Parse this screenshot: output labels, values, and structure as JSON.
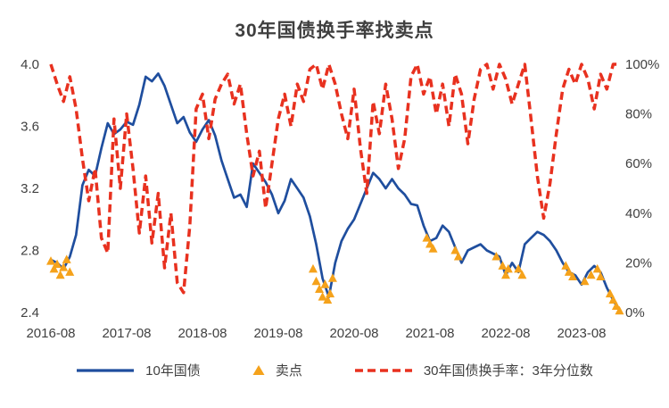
{
  "chart_data": {
    "type": "line",
    "title": "30年国债换手率找卖点",
    "grid": false,
    "legend_position": "bottom",
    "background": "#FFFFFF",
    "x_axis": {
      "unit": "months since 2016-08",
      "range": [
        0,
        90
      ],
      "tick_months": [
        0,
        12,
        24,
        36,
        48,
        60,
        72,
        84
      ],
      "tick_labels": [
        "2016-08",
        "2017-08",
        "2018-08",
        "2019-08",
        "2020-08",
        "2021-08",
        "2022-08",
        "2023-08"
      ]
    },
    "y_axis_left": {
      "range": [
        2.4,
        4.0
      ],
      "ticks": [
        2.4,
        2.8,
        3.2,
        3.6,
        4.0
      ],
      "tick_labels": [
        "2.4",
        "2.8",
        "3.2",
        "3.6",
        "4.0"
      ]
    },
    "y_axis_right": {
      "range": [
        0,
        100
      ],
      "ticks": [
        0,
        20,
        40,
        60,
        80,
        100
      ],
      "tick_labels": [
        "0%",
        "20%",
        "40%",
        "60%",
        "80%",
        "100%"
      ]
    },
    "series": [
      {
        "name": "10年国债",
        "type": "line",
        "axis": "left",
        "color": "#1F4E9E",
        "x_step": "monthly from month 0",
        "values": [
          2.74,
          2.72,
          2.68,
          2.76,
          2.9,
          3.22,
          3.32,
          3.28,
          3.46,
          3.62,
          3.55,
          3.58,
          3.63,
          3.61,
          3.74,
          3.92,
          3.89,
          3.94,
          3.86,
          3.74,
          3.62,
          3.66,
          3.56,
          3.5,
          3.58,
          3.64,
          3.54,
          3.38,
          3.26,
          3.14,
          3.16,
          3.08,
          3.36,
          3.3,
          3.24,
          3.16,
          3.04,
          3.12,
          3.26,
          3.2,
          3.14,
          3.02,
          2.84,
          2.62,
          2.5,
          2.72,
          2.86,
          2.94,
          3.0,
          3.1,
          3.2,
          3.3,
          3.26,
          3.2,
          3.26,
          3.2,
          3.16,
          3.1,
          3.09,
          2.96,
          2.86,
          2.88,
          2.96,
          2.92,
          2.82,
          2.72,
          2.8,
          2.82,
          2.84,
          2.8,
          2.78,
          2.76,
          2.64,
          2.72,
          2.66,
          2.84,
          2.88,
          2.92,
          2.9,
          2.86,
          2.8,
          2.72,
          2.66,
          2.64,
          2.58,
          2.66,
          2.7,
          2.66,
          2.56,
          2.48,
          2.41
        ]
      },
      {
        "name": "卖点",
        "type": "scatter-triangle",
        "axis": "left",
        "color": "#F5A21B",
        "points": [
          [
            0,
            2.73
          ],
          [
            0.5,
            2.68
          ],
          [
            1,
            2.71
          ],
          [
            1.5,
            2.64
          ],
          [
            2,
            2.69
          ],
          [
            2.5,
            2.74
          ],
          [
            3,
            2.66
          ],
          [
            41.5,
            2.68
          ],
          [
            42,
            2.6
          ],
          [
            42.5,
            2.55
          ],
          [
            43,
            2.5
          ],
          [
            43.4,
            2.58
          ],
          [
            43.8,
            2.48
          ],
          [
            44.2,
            2.52
          ],
          [
            44.6,
            2.62
          ],
          [
            59.5,
            2.88
          ],
          [
            60,
            2.84
          ],
          [
            60.5,
            2.81
          ],
          [
            64,
            2.8
          ],
          [
            64.5,
            2.76
          ],
          [
            70.5,
            2.76
          ],
          [
            71.5,
            2.7
          ],
          [
            72,
            2.64
          ],
          [
            72.4,
            2.68
          ],
          [
            74,
            2.68
          ],
          [
            74.6,
            2.64
          ],
          [
            81.5,
            2.7
          ],
          [
            82,
            2.66
          ],
          [
            82.6,
            2.63
          ],
          [
            84.5,
            2.6
          ],
          [
            85.5,
            2.64
          ],
          [
            86.5,
            2.68
          ],
          [
            87,
            2.63
          ],
          [
            88.5,
            2.52
          ],
          [
            89,
            2.48
          ],
          [
            89.5,
            2.44
          ],
          [
            90,
            2.41
          ]
        ]
      },
      {
        "name": "30年国债换手率：3年分位数",
        "type": "dashed-line",
        "axis": "right",
        "color": "#E8311F",
        "x_step": "monthly from month 0",
        "values": [
          100,
          92,
          85,
          95,
          82,
          62,
          45,
          58,
          30,
          24,
          78,
          50,
          80,
          58,
          32,
          55,
          28,
          48,
          18,
          40,
          12,
          8,
          35,
          82,
          88,
          70,
          86,
          92,
          96,
          84,
          92,
          72,
          55,
          65,
          42,
          60,
          78,
          88,
          75,
          92,
          85,
          98,
          100,
          90,
          100,
          92,
          80,
          70,
          90,
          66,
          48,
          85,
          72,
          92,
          78,
          58,
          70,
          95,
          100,
          88,
          95,
          80,
          92,
          75,
          96,
          88,
          68,
          86,
          98,
          100,
          90,
          100,
          94,
          84,
          92,
          100,
          78,
          55,
          38,
          52,
          72,
          90,
          98,
          92,
          100,
          94,
          82,
          96,
          90,
          100,
          100
        ]
      }
    ]
  }
}
